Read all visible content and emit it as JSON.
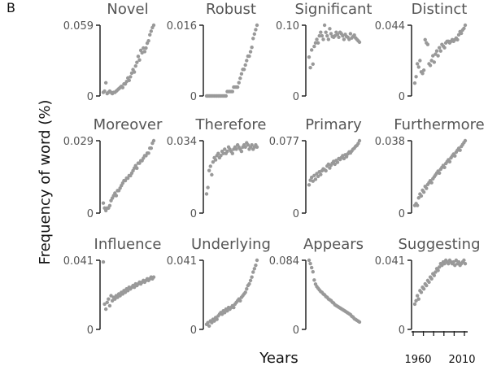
{
  "panel_label": "B",
  "ylabel": "Frequency of word (%)",
  "xlabel": "Years",
  "x_ticks": [
    "1960",
    "2010"
  ],
  "colors": {
    "point": "#999999",
    "axis": "#222222",
    "text": "#555555",
    "label": "#111111"
  },
  "chart_data": [
    {
      "type": "scatter",
      "title": "Novel",
      "ymax_label": "0.059",
      "ymin_label": "0",
      "ylim": [
        0,
        0.059
      ],
      "values": [
        0.003,
        0.004,
        0.011,
        0.002,
        0.003,
        0.004,
        0.003,
        0.002,
        0.003,
        0.003,
        0.004,
        0.005,
        0.006,
        0.007,
        0.008,
        0.007,
        0.01,
        0.01,
        0.012,
        0.015,
        0.013,
        0.016,
        0.019,
        0.022,
        0.02,
        0.025,
        0.028,
        0.033,
        0.03,
        0.038,
        0.036,
        0.04,
        0.037,
        0.04,
        0.044,
        0.046,
        0.051,
        0.054,
        0.057,
        0.059
      ]
    },
    {
      "type": "scatter",
      "title": "Robust",
      "ymax_label": "0.016",
      "ymin_label": "0",
      "ylim": [
        0,
        0.016
      ],
      "values": [
        0.0,
        0.0,
        0.0,
        0.0,
        0.0,
        0.0,
        0.0,
        0.0,
        0.0,
        0.0,
        0.0,
        0.0,
        0.0,
        0.0,
        0.0,
        0.0,
        0.001,
        0.001,
        0.001,
        0.001,
        0.001,
        0.002,
        0.002,
        0.002,
        0.002,
        0.003,
        0.004,
        0.005,
        0.006,
        0.006,
        0.007,
        0.008,
        0.009,
        0.009,
        0.01,
        0.011,
        0.013,
        0.014,
        0.015,
        0.016
      ]
    },
    {
      "type": "scatter",
      "title": "Significant",
      "ymax_label": "0.10",
      "ymin_label": "0",
      "ylim": [
        0,
        0.1
      ],
      "values": [
        0.055,
        0.04,
        0.065,
        0.045,
        0.07,
        0.075,
        0.08,
        0.075,
        0.085,
        0.09,
        0.085,
        0.08,
        0.1,
        0.09,
        0.085,
        0.08,
        0.095,
        0.088,
        0.084,
        0.083,
        0.085,
        0.09,
        0.087,
        0.083,
        0.09,
        0.088,
        0.085,
        0.08,
        0.087,
        0.084,
        0.083,
        0.08,
        0.088,
        0.082,
        0.084,
        0.086,
        0.082,
        0.08,
        0.078,
        0.076
      ]
    },
    {
      "type": "scatter",
      "title": "Distinct",
      "ymax_label": "0.044",
      "ymin_label": "0",
      "ylim": [
        0,
        0.044
      ],
      "values": [
        0.008,
        0.012,
        0.02,
        0.018,
        0.022,
        0.015,
        0.014,
        0.016,
        0.035,
        0.033,
        0.032,
        0.02,
        0.019,
        0.022,
        0.025,
        0.021,
        0.026,
        0.028,
        0.025,
        0.03,
        0.028,
        0.032,
        0.031,
        0.03,
        0.033,
        0.034,
        0.034,
        0.033,
        0.034,
        0.035,
        0.034,
        0.035,
        0.036,
        0.035,
        0.038,
        0.04,
        0.039,
        0.041,
        0.042,
        0.044
      ]
    },
    {
      "type": "scatter",
      "title": "Moreover",
      "ymax_label": "0.029",
      "ymin_label": "0",
      "ylim": [
        0,
        0.029
      ],
      "values": [
        0.004,
        0.002,
        0.001,
        0.002,
        0.002,
        0.003,
        0.005,
        0.006,
        0.007,
        0.008,
        0.007,
        0.009,
        0.009,
        0.01,
        0.011,
        0.012,
        0.013,
        0.013,
        0.014,
        0.014,
        0.015,
        0.015,
        0.016,
        0.017,
        0.018,
        0.019,
        0.018,
        0.02,
        0.02,
        0.021,
        0.021,
        0.022,
        0.023,
        0.023,
        0.024,
        0.024,
        0.026,
        0.026,
        0.028,
        0.029
      ]
    },
    {
      "type": "scatter",
      "title": "Therefore",
      "ymax_label": "0.034",
      "ymin_label": "0",
      "ylim": [
        0,
        0.034
      ],
      "values": [
        0.009,
        0.012,
        0.02,
        0.022,
        0.018,
        0.024,
        0.026,
        0.025,
        0.027,
        0.028,
        0.026,
        0.027,
        0.029,
        0.028,
        0.03,
        0.028,
        0.029,
        0.031,
        0.03,
        0.029,
        0.028,
        0.03,
        0.031,
        0.03,
        0.032,
        0.031,
        0.03,
        0.029,
        0.031,
        0.032,
        0.031,
        0.033,
        0.032,
        0.03,
        0.031,
        0.032,
        0.03,
        0.031,
        0.032,
        0.031
      ]
    },
    {
      "type": "scatter",
      "title": "Primary",
      "ymax_label": "0.077",
      "ymin_label": "0",
      "ylim": [
        0,
        0.077
      ],
      "values": [
        0.03,
        0.035,
        0.038,
        0.034,
        0.04,
        0.036,
        0.042,
        0.039,
        0.044,
        0.041,
        0.045,
        0.047,
        0.046,
        0.045,
        0.05,
        0.052,
        0.048,
        0.051,
        0.053,
        0.055,
        0.052,
        0.056,
        0.054,
        0.058,
        0.057,
        0.059,
        0.061,
        0.058,
        0.062,
        0.06,
        0.063,
        0.065,
        0.064,
        0.066,
        0.068,
        0.069,
        0.071,
        0.072,
        0.074,
        0.077
      ]
    },
    {
      "type": "scatter",
      "title": "Furthermore",
      "ymax_label": "0.038",
      "ymin_label": "0",
      "ylim": [
        0,
        0.038
      ],
      "values": [
        0.004,
        0.005,
        0.004,
        0.008,
        0.01,
        0.009,
        0.012,
        0.011,
        0.014,
        0.013,
        0.015,
        0.016,
        0.017,
        0.016,
        0.018,
        0.019,
        0.02,
        0.021,
        0.022,
        0.021,
        0.023,
        0.024,
        0.025,
        0.024,
        0.026,
        0.027,
        0.028,
        0.027,
        0.029,
        0.03,
        0.031,
        0.03,
        0.032,
        0.033,
        0.034,
        0.033,
        0.035,
        0.036,
        0.037,
        0.038
      ]
    },
    {
      "type": "scatter",
      "title": "Influence",
      "ymax_label": "0.041",
      "ymin_label": "0",
      "ylim": [
        0,
        0.041
      ],
      "values": [
        0.04,
        0.015,
        0.012,
        0.016,
        0.018,
        0.014,
        0.02,
        0.017,
        0.019,
        0.018,
        0.02,
        0.019,
        0.021,
        0.02,
        0.022,
        0.021,
        0.023,
        0.022,
        0.024,
        0.023,
        0.025,
        0.024,
        0.025,
        0.026,
        0.025,
        0.027,
        0.026,
        0.027,
        0.028,
        0.027,
        0.028,
        0.029,
        0.028,
        0.029,
        0.03,
        0.029,
        0.03,
        0.031,
        0.03,
        0.031
      ]
    },
    {
      "type": "scatter",
      "title": "Underlying",
      "ymax_label": "0.041",
      "ymin_label": "0",
      "ylim": [
        0,
        0.041
      ],
      "values": [
        0.003,
        0.004,
        0.002,
        0.005,
        0.004,
        0.006,
        0.005,
        0.007,
        0.006,
        0.008,
        0.009,
        0.01,
        0.009,
        0.011,
        0.01,
        0.012,
        0.011,
        0.013,
        0.012,
        0.013,
        0.014,
        0.013,
        0.015,
        0.016,
        0.017,
        0.018,
        0.017,
        0.019,
        0.02,
        0.021,
        0.022,
        0.024,
        0.026,
        0.027,
        0.029,
        0.031,
        0.034,
        0.036,
        0.038,
        0.041
      ]
    },
    {
      "type": "scatter",
      "title": "Appears",
      "ymax_label": "0.084",
      "ymin_label": "0",
      "ylim": [
        0,
        0.084
      ],
      "values": [
        0.084,
        0.08,
        0.075,
        0.07,
        0.06,
        0.055,
        0.052,
        0.05,
        0.048,
        0.046,
        0.045,
        0.043,
        0.042,
        0.04,
        0.039,
        0.037,
        0.036,
        0.035,
        0.033,
        0.032,
        0.03,
        0.029,
        0.028,
        0.027,
        0.026,
        0.025,
        0.024,
        0.023,
        0.022,
        0.021,
        0.02,
        0.019,
        0.018,
        0.016,
        0.015,
        0.013,
        0.012,
        0.011,
        0.01,
        0.009
      ]
    },
    {
      "type": "scatter",
      "title": "Suggesting",
      "ymax_label": "0.041",
      "ymin_label": "0",
      "ylim": [
        0,
        0.041
      ],
      "values": [
        0.015,
        0.017,
        0.02,
        0.018,
        0.023,
        0.022,
        0.025,
        0.024,
        0.027,
        0.026,
        0.029,
        0.028,
        0.031,
        0.03,
        0.033,
        0.032,
        0.034,
        0.036,
        0.035,
        0.037,
        0.039,
        0.038,
        0.04,
        0.039,
        0.041,
        0.04,
        0.039,
        0.041,
        0.04,
        0.039,
        0.04,
        0.038,
        0.041,
        0.039,
        0.04,
        0.038,
        0.039,
        0.04,
        0.041,
        0.039
      ]
    }
  ]
}
